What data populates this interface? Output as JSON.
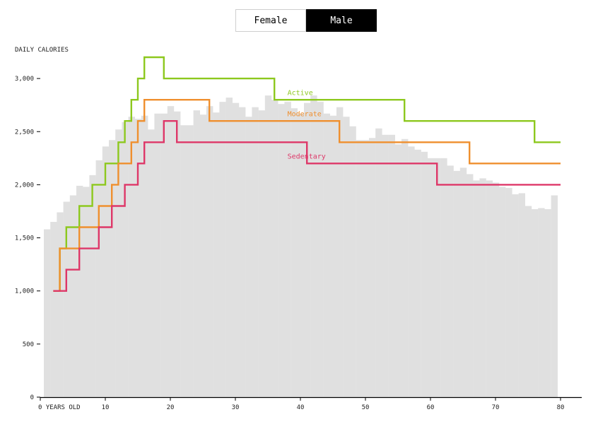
{
  "toggle": {
    "female_label": "Female",
    "male_label": "Male",
    "selected": "Male"
  },
  "chart_data": {
    "type": "line",
    "ylabel": "DAILY CALORIES",
    "x_ticks": [
      {
        "value": 0,
        "label": "0 YEARS OLD"
      },
      {
        "value": 10,
        "label": "10"
      },
      {
        "value": 20,
        "label": "20"
      },
      {
        "value": 30,
        "label": "30"
      },
      {
        "value": 40,
        "label": "40"
      },
      {
        "value": 50,
        "label": "50"
      },
      {
        "value": 60,
        "label": "60"
      },
      {
        "value": 70,
        "label": "70"
      },
      {
        "value": 80,
        "label": "80"
      }
    ],
    "y_ticks": [
      {
        "value": 0,
        "label": "0"
      },
      {
        "value": 500,
        "label": "500"
      },
      {
        "value": 1000,
        "label": "1,000"
      },
      {
        "value": 1500,
        "label": "1,500"
      },
      {
        "value": 2000,
        "label": "2,000"
      },
      {
        "value": 2500,
        "label": "2,500"
      },
      {
        "value": 3000,
        "label": "3,000"
      }
    ],
    "xlim": [
      0,
      83
    ],
    "ylim": [
      0,
      3300
    ],
    "histogram": {
      "color": "#e0e0e0",
      "start_age": 1,
      "values": [
        1580,
        1650,
        1740,
        1840,
        1900,
        1990,
        1980,
        2090,
        2230,
        2360,
        2420,
        2520,
        2590,
        2640,
        2620,
        2650,
        2520,
        2670,
        2670,
        2740,
        2690,
        2560,
        2560,
        2700,
        2660,
        2740,
        2680,
        2780,
        2820,
        2770,
        2730,
        2640,
        2730,
        2700,
        2840,
        2800,
        2760,
        2780,
        2720,
        2670,
        2770,
        2840,
        2780,
        2670,
        2650,
        2730,
        2640,
        2550,
        2420,
        2420,
        2440,
        2530,
        2470,
        2470,
        2380,
        2430,
        2360,
        2330,
        2310,
        2250,
        2250,
        2250,
        2180,
        2130,
        2160,
        2100,
        2040,
        2060,
        2040,
        2020,
        1980,
        1970,
        1910,
        1920,
        1800,
        1770,
        1780,
        1770,
        1900
      ]
    },
    "series": [
      {
        "name": "Active",
        "color": "#8dc81e",
        "label_at": [
          38,
          2845
        ],
        "steps": [
          [
            2,
            1000
          ],
          [
            3,
            1400
          ],
          [
            4,
            1600
          ],
          [
            6,
            1800
          ],
          [
            8,
            2000
          ],
          [
            10,
            2200
          ],
          [
            12,
            2400
          ],
          [
            13,
            2600
          ],
          [
            14,
            2800
          ],
          [
            15,
            3000
          ],
          [
            16,
            3200
          ],
          [
            19,
            3000
          ],
          [
            36,
            2800
          ],
          [
            56,
            2600
          ],
          [
            76,
            2400
          ],
          [
            80,
            2400
          ]
        ]
      },
      {
        "name": "Moderate",
        "color": "#ef8f2e",
        "label_at": [
          38,
          2645
        ],
        "steps": [
          [
            2,
            1000
          ],
          [
            3,
            1400
          ],
          [
            6,
            1600
          ],
          [
            9,
            1800
          ],
          [
            11,
            2000
          ],
          [
            12,
            2200
          ],
          [
            14,
            2400
          ],
          [
            15,
            2600
          ],
          [
            16,
            2800
          ],
          [
            26,
            2600
          ],
          [
            46,
            2400
          ],
          [
            66,
            2200
          ],
          [
            80,
            2200
          ]
        ]
      },
      {
        "name": "Sedentary",
        "color": "#de3768",
        "label_at": [
          38,
          2245
        ],
        "steps": [
          [
            2,
            1000
          ],
          [
            4,
            1200
          ],
          [
            6,
            1400
          ],
          [
            9,
            1600
          ],
          [
            11,
            1800
          ],
          [
            13,
            2000
          ],
          [
            15,
            2200
          ],
          [
            16,
            2400
          ],
          [
            19,
            2600
          ],
          [
            21,
            2400
          ],
          [
            41,
            2200
          ],
          [
            61,
            2000
          ],
          [
            80,
            2000
          ]
        ]
      }
    ]
  }
}
